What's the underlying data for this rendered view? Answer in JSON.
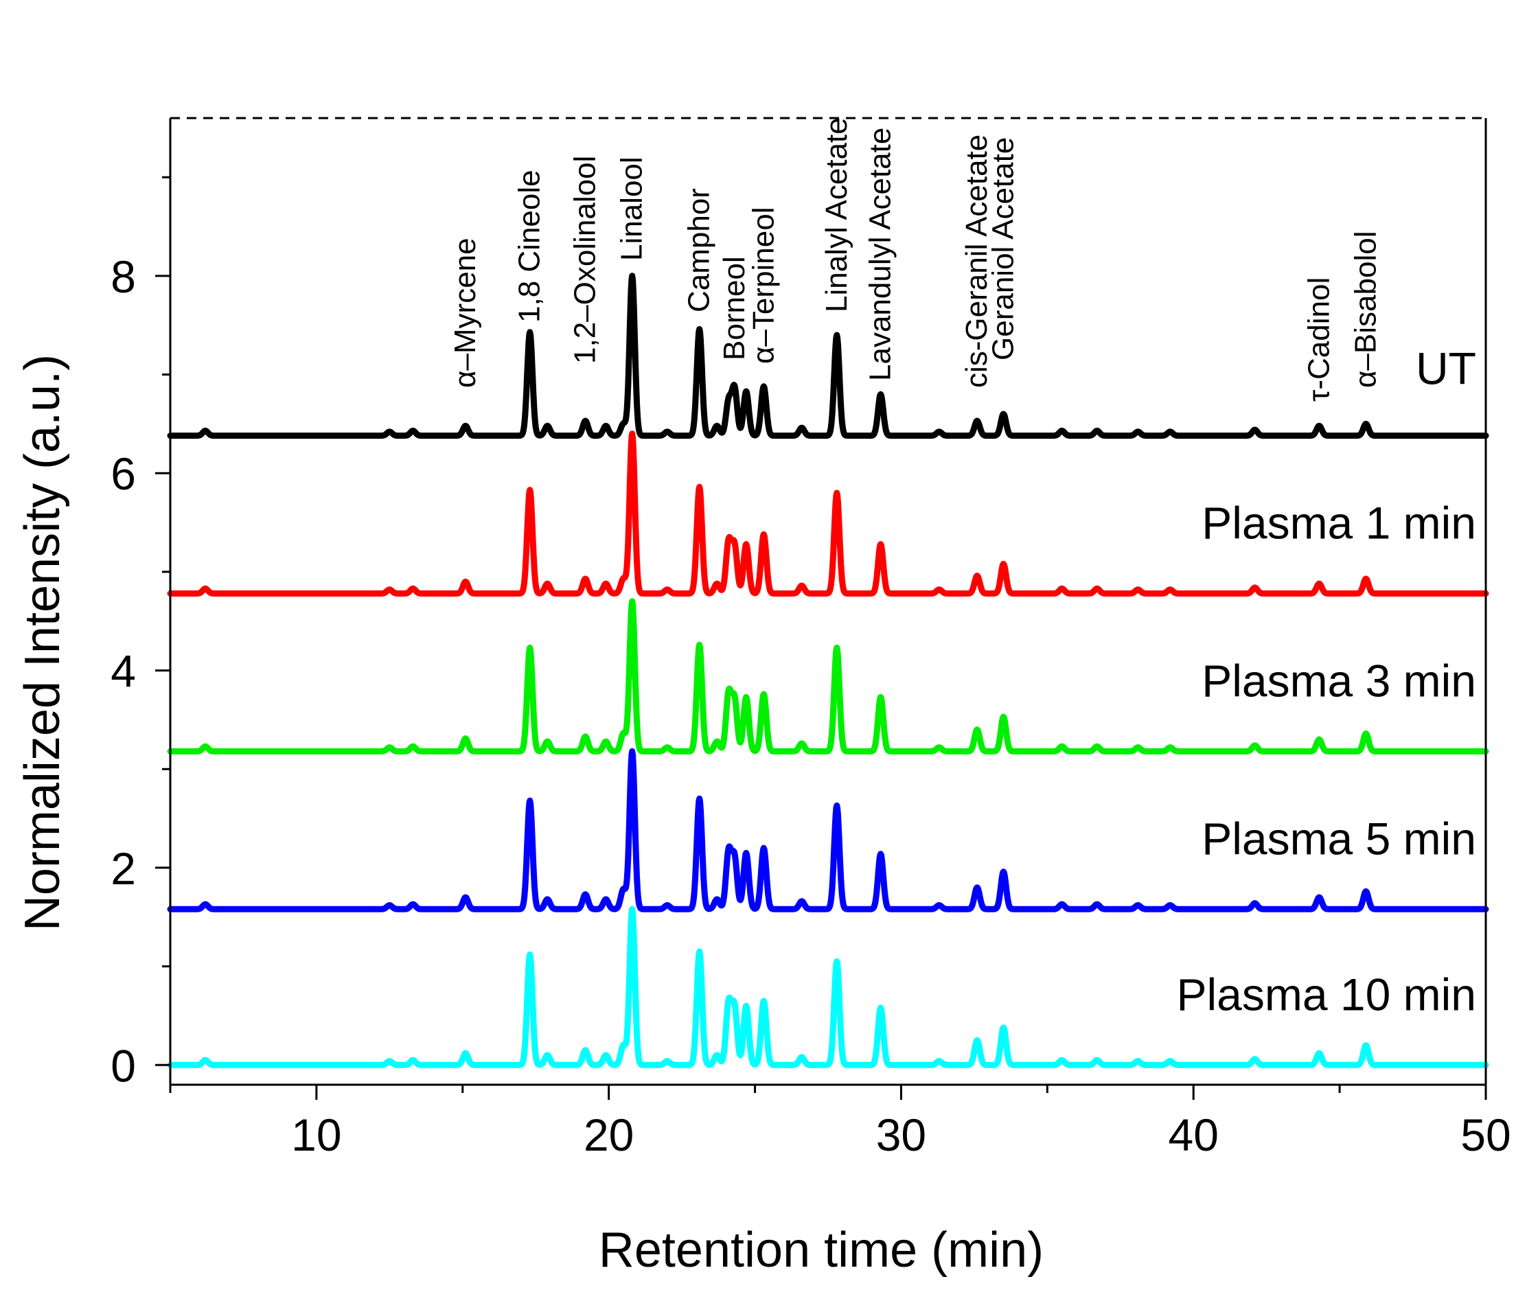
{
  "chart_data": {
    "type": "line",
    "title": "",
    "xlabel": "Retention time (min)",
    "ylabel": "Normalized Intensity (a.u.)",
    "xlim": [
      5,
      50
    ],
    "ylim": [
      -0.2,
      9.6
    ],
    "xticks": [
      10,
      20,
      30,
      40,
      50
    ],
    "yticks": [
      0,
      2,
      4,
      6,
      8
    ],
    "reference_line": {
      "y": 9.6,
      "style": "dashed"
    },
    "peaks": [
      {
        "name": "α–Myrcene",
        "rt": 15.1
      },
      {
        "name": "1,8 Cineole",
        "rt": 17.3
      },
      {
        "name": "1,2–Oxolinalool",
        "rt": 19.2
      },
      {
        "name": "Linalool",
        "rt": 20.8
      },
      {
        "name": "Camphor",
        "rt": 23.1
      },
      {
        "name": "Borneol",
        "rt": 24.3
      },
      {
        "name": "α–Terpineol",
        "rt": 25.3
      },
      {
        "name": "Linalyl Acetate",
        "rt": 27.8
      },
      {
        "name": "Lavandulyl Acetate",
        "rt": 29.3
      },
      {
        "name": "cis-Geranil Acetate",
        "rt": 32.6
      },
      {
        "name": "Geraniol Acetate",
        "rt": 33.5
      },
      {
        "name": "τ-Cadinol",
        "rt": 44.3
      },
      {
        "name": "α–Bisabolol",
        "rt": 45.9
      }
    ],
    "series": [
      {
        "name": "UT",
        "color": "#000000",
        "baseline": 6.38,
        "heights": [
          0.1,
          1.05,
          0.15,
          1.62,
          1.08,
          0.48,
          0.5,
          1.02,
          0.42,
          0.15,
          0.22,
          0.1,
          0.12
        ],
        "extra_heights": [
          0.45,
          0.35,
          0.12
        ]
      },
      {
        "name": "Plasma 1 min",
        "color": "#ff0000",
        "baseline": 4.78,
        "heights": [
          0.12,
          1.05,
          0.15,
          1.62,
          1.08,
          0.48,
          0.6,
          1.02,
          0.5,
          0.18,
          0.3,
          0.1,
          0.15
        ],
        "extra_heights": [
          0.5,
          0.52,
          0.15
        ]
      },
      {
        "name": "Plasma 3 min",
        "color": "#00ee00",
        "baseline": 3.18,
        "heights": [
          0.13,
          1.05,
          0.15,
          1.52,
          1.08,
          0.52,
          0.58,
          1.05,
          0.55,
          0.22,
          0.35,
          0.12,
          0.18
        ],
        "extra_heights": [
          0.55,
          0.58,
          0.18
        ]
      },
      {
        "name": "Plasma 5 min",
        "color": "#0000ff",
        "baseline": 1.58,
        "heights": [
          0.12,
          1.1,
          0.15,
          1.6,
          1.12,
          0.52,
          0.62,
          1.05,
          0.56,
          0.22,
          0.38,
          0.12,
          0.18
        ],
        "extra_heights": [
          0.57,
          0.58,
          0.2
        ]
      },
      {
        "name": "Plasma 10 min",
        "color": "#00ffff",
        "baseline": 0.0,
        "heights": [
          0.12,
          1.12,
          0.15,
          1.58,
          1.15,
          0.58,
          0.65,
          1.05,
          0.58,
          0.25,
          0.38,
          0.12,
          0.2
        ],
        "extra_heights": [
          0.6,
          0.62,
          0.2
        ]
      }
    ]
  }
}
